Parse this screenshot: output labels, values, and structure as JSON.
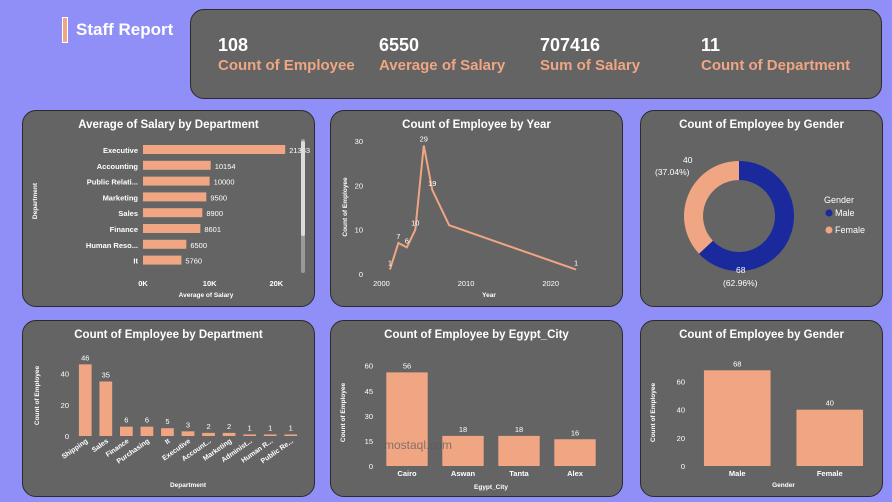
{
  "report": {
    "title": "Staff Report"
  },
  "kpis": [
    {
      "value": "108",
      "label": "Count of Employee"
    },
    {
      "value": "6550",
      "label": "Average of Salary"
    },
    {
      "value": "707416",
      "label": "Sum of Salary"
    },
    {
      "value": "11",
      "label": "Count of Department"
    }
  ],
  "watermark": "mostaql.com",
  "chart_data": [
    {
      "id": "salary_by_dept",
      "type": "bar",
      "orientation": "horizontal",
      "title": "Average of Salary by Department",
      "xlabel": "Average of Salary",
      "ylabel": "Department",
      "categories": [
        "Executive",
        "Accounting",
        "Public Relati...",
        "Marketing",
        "Sales",
        "Finance",
        "Human Reso...",
        "It"
      ],
      "values": [
        21333,
        10154,
        10000,
        9500,
        8900,
        8601,
        6500,
        5760
      ],
      "data_labels": [
        "21333",
        "10154",
        "10000",
        "9500",
        "8900",
        "8601",
        "6500",
        "5760"
      ],
      "xticks": [
        0,
        10000,
        20000
      ],
      "xtick_labels": [
        "0K",
        "10K",
        "20K"
      ],
      "xlim": [
        0,
        24000
      ],
      "color": "#f0a583"
    },
    {
      "id": "emp_by_year",
      "type": "line",
      "title": "Count of Employee by Year",
      "xlabel": "Year",
      "ylabel": "Count of Employee",
      "x": [
        2001,
        2002,
        2003,
        2004,
        2005,
        2006,
        2008,
        2023
      ],
      "y": [
        1,
        7,
        6,
        10,
        29,
        19,
        11,
        1
      ],
      "point_labels": [
        "1",
        "7",
        "6",
        "10",
        "29",
        "19",
        "",
        "1"
      ],
      "xticks": [
        2000,
        2010,
        2020
      ],
      "yticks": [
        0,
        10,
        20,
        30
      ],
      "xlim": [
        1999,
        2025
      ],
      "ylim": [
        0,
        30
      ],
      "color": "#f0a583"
    },
    {
      "id": "emp_by_gender_pie",
      "type": "pie",
      "donut": true,
      "title": "Count of Employee by Gender",
      "legend_title": "Gender",
      "labels": [
        "Male",
        "Female"
      ],
      "values": [
        68,
        40
      ],
      "percent_labels": [
        "(62.96%)",
        "(37.04%)"
      ],
      "colors": [
        "#1a2a9c",
        "#f0a583"
      ]
    },
    {
      "id": "emp_by_dept",
      "type": "bar",
      "title": "Count of Employee by Department",
      "xlabel": "Department",
      "ylabel": "Count of Employee",
      "categories": [
        "Shipping",
        "Sales",
        "Finance",
        "Purchasing",
        "It",
        "Executive",
        "Account...",
        "Marketing",
        "Administ...",
        "Human R...",
        "Public Re..."
      ],
      "values": [
        46,
        35,
        6,
        6,
        5,
        3,
        2,
        2,
        1,
        1,
        1
      ],
      "yticks": [
        0,
        20,
        40
      ],
      "ylim": [
        0,
        52
      ],
      "color": "#f0a583"
    },
    {
      "id": "emp_by_city",
      "type": "bar",
      "title": "Count of Employee by Egypt_City",
      "xlabel": "Egypt_City",
      "ylabel": "Count of Employee",
      "categories": [
        "Cairo",
        "Aswan",
        "Tanta",
        "Alex"
      ],
      "values": [
        56,
        18,
        18,
        16
      ],
      "yticks": [
        0,
        15,
        30,
        45,
        60
      ],
      "ylim": [
        0,
        64
      ],
      "color": "#f0a583"
    },
    {
      "id": "emp_by_gender_bar",
      "type": "bar",
      "title": "Count of Employee by Gender",
      "xlabel": "Gender",
      "ylabel": "Count of Employee",
      "categories": [
        "Male",
        "Female"
      ],
      "values": [
        68,
        40
      ],
      "yticks": [
        0,
        20,
        40,
        60
      ],
      "ylim": [
        0,
        76
      ],
      "color": "#f0a583"
    }
  ]
}
